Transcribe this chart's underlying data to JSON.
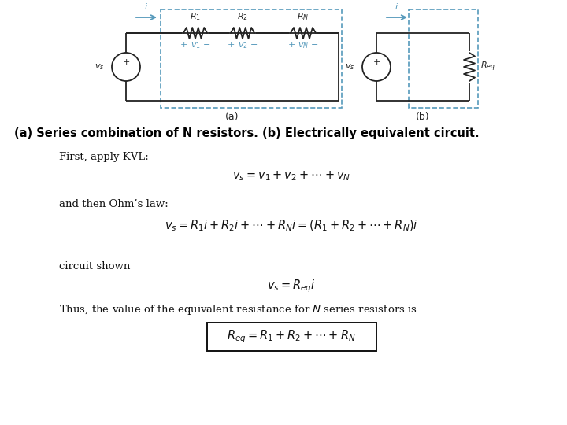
{
  "bg_color": "#ffffff",
  "title_text": "(a) Series combination of N resistors. (b) Electrically equivalent circuit.",
  "circuit_a_label": "(a)",
  "circuit_b_label": "(b)",
  "dashed_box_color": "#5599bb",
  "wire_color": "#222222",
  "blue_color": "#5599bb",
  "line1_text": "First, apply KVL:",
  "eq1": "$v_s = v_1 + v_2 + \\cdots + v_N$",
  "line2_text": "and then Ohm’s law:",
  "eq2": "$v_s = R_1 i + R_2 i + \\cdots + R_N i = (R_1 + R_2 + \\cdots + R_N)i$",
  "line3_text": "circuit shown",
  "eq3": "$v_s = R_{eq} i$",
  "line4_text": "Thus, the value of the equivalent resistance for $N$ series resistors is",
  "eq4": "$R_{eq} = R_1 + R_2 + \\cdots + R_N$",
  "figsize": [
    7.2,
    5.4
  ],
  "dpi": 100
}
